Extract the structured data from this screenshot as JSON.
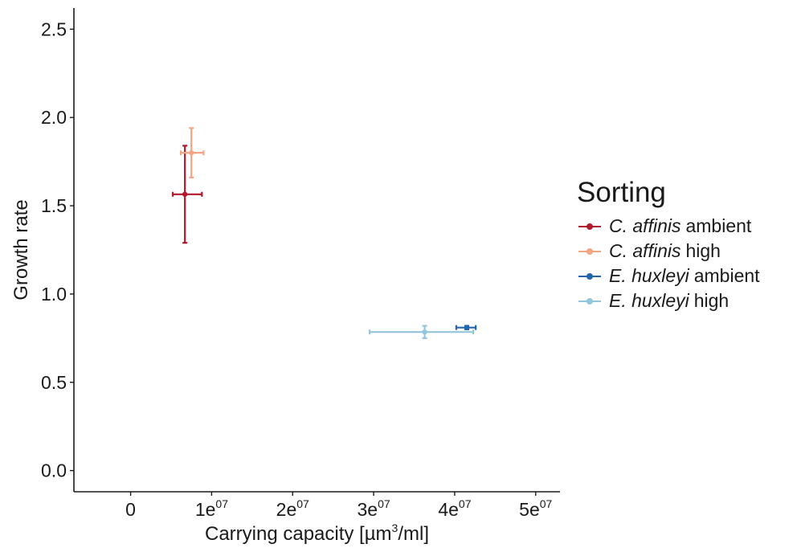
{
  "chart_data": {
    "type": "scatter",
    "title": "",
    "xlabel": "Carrying capacity [µm",
    "xlabel_sup": "3",
    "xlabel_end": "/ml]",
    "ylabel": "Growth rate",
    "xlim": [
      -7000000,
      53000000
    ],
    "ylim": [
      -0.12,
      2.62
    ],
    "x_ticks": [
      {
        "value": 0,
        "base": "0",
        "sup": ""
      },
      {
        "value": 10000000,
        "base": "1e",
        "sup": "07"
      },
      {
        "value": 20000000,
        "base": "2e",
        "sup": "07"
      },
      {
        "value": 30000000,
        "base": "3e",
        "sup": "07"
      },
      {
        "value": 40000000,
        "base": "4e",
        "sup": "07"
      },
      {
        "value": 50000000,
        "base": "5e",
        "sup": "07"
      }
    ],
    "y_ticks": [
      {
        "value": 0.0,
        "label": "0.0"
      },
      {
        "value": 0.5,
        "label": "0.5"
      },
      {
        "value": 1.0,
        "label": "1.0"
      },
      {
        "value": 1.5,
        "label": "1.5"
      },
      {
        "value": 2.0,
        "label": "2.0"
      },
      {
        "value": 2.5,
        "label": "2.5"
      }
    ],
    "grid": false,
    "legend": {
      "title": "Sorting",
      "placement": "right",
      "entries": [
        {
          "species": "C. affinis",
          "level": "ambient",
          "color": "#b2182b"
        },
        {
          "species": "C. affinis",
          "level": "high",
          "color": "#f4a582"
        },
        {
          "species": "E. huxleyi",
          "level": "ambient",
          "color": "#2166ac"
        },
        {
          "species": "E. huxleyi",
          "level": "high",
          "color": "#92c5de"
        }
      ]
    },
    "series": [
      {
        "name": "C. affinis ambient",
        "color": "#b2182b",
        "points": [
          {
            "x": 6700000,
            "y": 1.565,
            "xmin": 5200000,
            "xmax": 8800000,
            "ymin": 1.29,
            "ymax": 1.84
          }
        ]
      },
      {
        "name": "C. affinis high",
        "color": "#f4a582",
        "points": [
          {
            "x": 7500000,
            "y": 1.8,
            "xmin": 6200000,
            "xmax": 9000000,
            "ymin": 1.66,
            "ymax": 1.94
          }
        ]
      },
      {
        "name": "E. huxleyi ambient",
        "color": "#2166ac",
        "points": [
          {
            "x": 41500000,
            "y": 0.81,
            "xmin": 40200000,
            "xmax": 42600000,
            "ymin": 0.8,
            "ymax": 0.82
          }
        ]
      },
      {
        "name": "E. huxleyi high",
        "color": "#92c5de",
        "points": [
          {
            "x": 36300000,
            "y": 0.785,
            "xmin": 29500000,
            "xmax": 42300000,
            "ymin": 0.75,
            "ymax": 0.82
          }
        ]
      }
    ]
  }
}
